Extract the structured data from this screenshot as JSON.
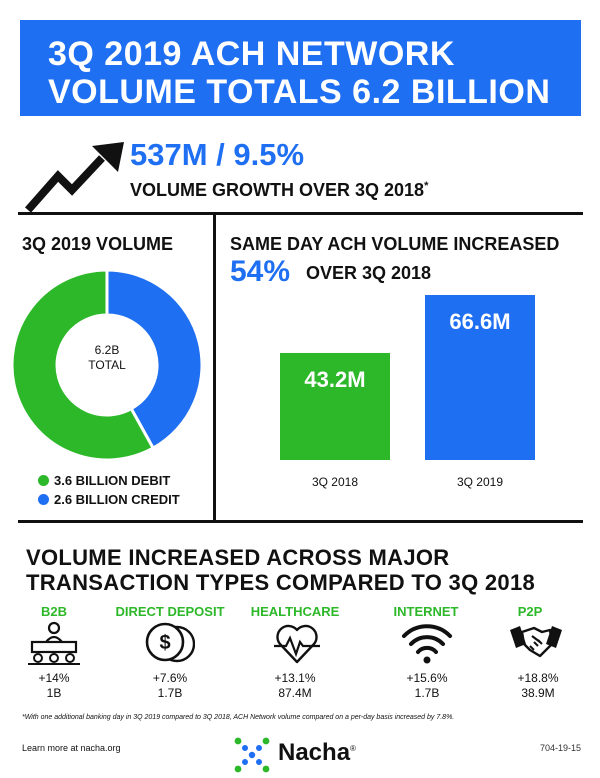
{
  "header": {
    "title_line1": "3Q 2019 ACH NETWORK",
    "title_line2": "VOLUME TOTALS 6.2 BILLION"
  },
  "growth": {
    "headline": "537M / 9.5%",
    "subline": "VOLUME GROWTH OVER 3Q 2018",
    "asterisk": "*",
    "icon": "trend-up-arrow-icon"
  },
  "volume": {
    "title": "3Q 2019 VOLUME",
    "center_line1": "6.2B",
    "center_line2": "TOTAL",
    "legend": [
      {
        "label": "3.6 BILLION DEBIT"
      },
      {
        "label": "2.6 BILLION CREDIT"
      }
    ]
  },
  "same_day": {
    "title": "SAME DAY ACH VOLUME INCREASED",
    "pct": "54%",
    "pct_suffix": "OVER 3Q 2018"
  },
  "transactions": {
    "title_line1": "VOLUME INCREASED ACROSS MAJOR",
    "title_line2": "TRANSACTION TYPES COMPARED TO 3Q 2018",
    "items": [
      {
        "name": "B2B",
        "icon": "meeting-table-icon",
        "pct": "+14%",
        "volume": "1B"
      },
      {
        "name": "DIRECT DEPOSIT",
        "icon": "dollar-coins-icon",
        "pct": "+7.6%",
        "volume": "1.7B"
      },
      {
        "name": "HEALTHCARE",
        "icon": "heart-pulse-icon",
        "pct": "+13.1%",
        "volume": "87.4M"
      },
      {
        "name": "INTERNET",
        "icon": "wifi-icon",
        "pct": "+15.6%",
        "volume": "1.7B"
      },
      {
        "name": "P2P",
        "icon": "handshake-icon",
        "pct": "+18.8%",
        "volume": "38.9M"
      }
    ]
  },
  "footer": {
    "footnote": "*With one additional banking day in 3Q 2019 compared to 3Q 2018, ACH Network volume compared on a per-day basis increased by 7.8%.",
    "learn_more": "Learn more at nacha.org",
    "brand": "Nacha",
    "brand_mark": "®",
    "code": "704-19-15"
  },
  "colors": {
    "blue": "#1f6ff2",
    "green": "#2db82a",
    "black": "#111111"
  },
  "chart_data": [
    {
      "type": "pie",
      "title": "3Q 2019 VOLUME",
      "unit": "billion",
      "categories": [
        "DEBIT",
        "CREDIT"
      ],
      "values": [
        3.6,
        2.6
      ],
      "colors": [
        "#2db82a",
        "#1f6ff2"
      ],
      "donut": true
    },
    {
      "type": "bar",
      "title": "SAME DAY ACH VOLUME INCREASED",
      "categories": [
        "3Q 2018",
        "3Q 2019"
      ],
      "values": [
        43.2,
        66.6
      ],
      "value_labels": [
        "43.2M",
        "66.6M"
      ],
      "unit": "M",
      "colors": [
        "#2db82a",
        "#1f6ff2"
      ],
      "ylim": [
        0,
        66.6
      ],
      "grid": false
    }
  ]
}
